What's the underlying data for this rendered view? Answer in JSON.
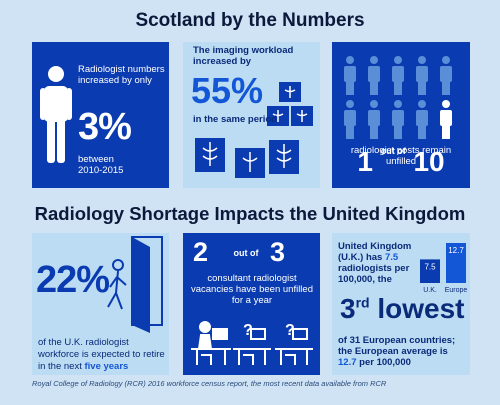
{
  "titles": {
    "scotland": "Scotland by the Numbers",
    "uk": "Radiology Shortage Impacts the United Kingdom"
  },
  "panel1": {
    "label": "Radiologist numbers increased by only",
    "value": "3%",
    "sub_line1": "between",
    "sub_line2": "2010-2015",
    "icon": "person-icon"
  },
  "panel2": {
    "label": "The imaging workload increased by",
    "value": "55%",
    "sub": "in the same period",
    "icon": "xray-scan-icon"
  },
  "panel3": {
    "value_left": "1",
    "of": "out of",
    "value_right": "10",
    "label_line1": "radiologist posts remain",
    "label_line2": "unfilled",
    "icon": "person-icon"
  },
  "panel4": {
    "value": "22%",
    "label_main": "of the U.K. radiologist workforce is expected to retire in the next",
    "label_hl": "five years",
    "icon": "door-exit-icon"
  },
  "panel5": {
    "value_left": "2",
    "of": "out of",
    "value_right": "3",
    "label": "consultant radiologist vacancies have been unfilled for a year",
    "icon": "desk-vacancy-icon"
  },
  "panel6": {
    "label_a": "United Kingdom (U.K.) has",
    "label_hl": "7.5",
    "label_b": "radiologists per 100,000, the",
    "rank_num": "3",
    "rank_sup": "rd",
    "rank_word": "lowest",
    "label2_a": "of 31 European countries; the European average is",
    "label2_hl": "12.7",
    "label2_b": "per 100,000"
  },
  "chart_data": {
    "type": "bar",
    "categories": [
      "U.K.",
      "Europe"
    ],
    "values": [
      7.5,
      12.7
    ],
    "value_labels": [
      "7.5",
      "12.7"
    ],
    "title": "",
    "ylim": [
      0,
      12.7
    ]
  },
  "source": "Royal College of Radiology (RCR) 2016 workforce census report, the most recent data available from RCR",
  "colors": {
    "background": "#cfe3f5",
    "dark_panel": "#0a3bb0",
    "light_panel": "#bcdcf3",
    "accent": "#1457d6"
  }
}
